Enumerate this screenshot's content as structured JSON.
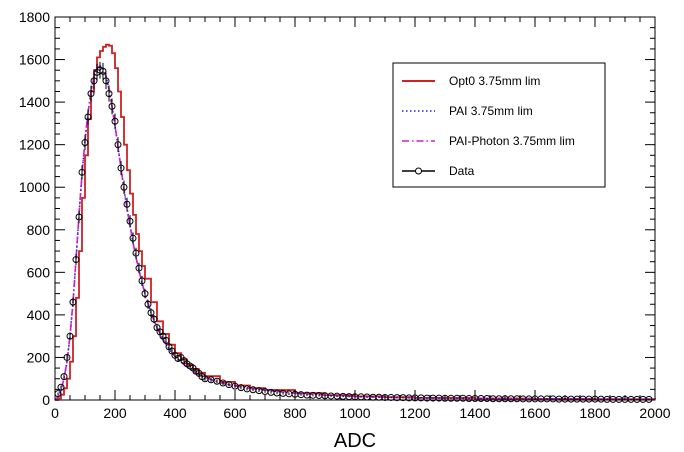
{
  "chart_data": {
    "type": "line",
    "xlabel": "ADC",
    "ylabel": "",
    "xlim": [
      0,
      2000
    ],
    "ylim": [
      0,
      1800
    ],
    "x_ticks": [
      0,
      200,
      400,
      600,
      800,
      1000,
      1200,
      1400,
      1600,
      1800,
      2000
    ],
    "y_ticks": [
      0,
      200,
      400,
      600,
      800,
      1000,
      1200,
      1400,
      1600,
      1800
    ],
    "grid": false,
    "legend_position": "top-right",
    "series": [
      {
        "name": "Opt0 3.75mm lim",
        "style": "step-solid",
        "color": "#cc2222",
        "x": [
          0,
          10,
          20,
          30,
          40,
          50,
          60,
          70,
          80,
          90,
          100,
          110,
          120,
          130,
          140,
          150,
          160,
          170,
          180,
          190,
          200,
          210,
          220,
          230,
          240,
          250,
          260,
          270,
          280,
          290,
          300,
          320,
          340,
          360,
          380,
          400,
          420,
          440,
          460,
          480,
          500,
          550,
          600,
          650,
          700,
          800,
          900,
          1000,
          1100,
          1200,
          1400,
          1600,
          1800,
          2000
        ],
        "y": [
          0,
          8,
          25,
          55,
          100,
          180,
          300,
          480,
          700,
          950,
          1150,
          1320,
          1450,
          1550,
          1610,
          1640,
          1660,
          1670,
          1665,
          1630,
          1560,
          1450,
          1330,
          1200,
          1080,
          970,
          870,
          780,
          700,
          630,
          570,
          460,
          370,
          310,
          260,
          220,
          190,
          165,
          145,
          128,
          112,
          85,
          68,
          56,
          47,
          32,
          23,
          17,
          13,
          10,
          7,
          5,
          4,
          3
        ]
      },
      {
        "name": "PAI 3.75mm lim",
        "style": "dotted",
        "color": "#2222cc",
        "x": [
          0,
          10,
          20,
          30,
          40,
          50,
          60,
          70,
          80,
          90,
          100,
          110,
          120,
          130,
          140,
          150,
          160,
          170,
          180,
          190,
          200,
          210,
          220,
          230,
          240,
          250,
          260,
          270,
          280,
          290,
          300,
          320,
          340,
          360,
          380,
          400,
          420,
          440,
          460,
          480,
          500,
          550,
          600,
          650,
          700,
          800,
          900,
          1000,
          1100,
          1200,
          1400,
          1600,
          1800,
          2000
        ],
        "y": [
          0,
          15,
          45,
          100,
          180,
          300,
          460,
          660,
          870,
          1060,
          1220,
          1350,
          1450,
          1520,
          1560,
          1570,
          1560,
          1520,
          1460,
          1380,
          1290,
          1190,
          1090,
          990,
          900,
          820,
          740,
          670,
          610,
          550,
          500,
          410,
          340,
          285,
          240,
          205,
          178,
          155,
          136,
          120,
          106,
          82,
          66,
          55,
          46,
          32,
          23,
          17,
          13,
          10,
          7,
          5,
          4,
          3
        ]
      },
      {
        "name": "PAI-Photon 3.75mm lim",
        "style": "dash-dot",
        "color": "#cc22cc",
        "x": [
          0,
          10,
          20,
          30,
          40,
          50,
          60,
          70,
          80,
          90,
          100,
          110,
          120,
          130,
          140,
          150,
          160,
          170,
          180,
          190,
          200,
          210,
          220,
          230,
          240,
          250,
          260,
          270,
          280,
          290,
          300,
          320,
          340,
          360,
          380,
          400,
          420,
          440,
          460,
          480,
          500,
          550,
          600,
          650,
          700,
          800,
          900,
          1000,
          1100,
          1200,
          1400,
          1600,
          1800,
          2000
        ],
        "y": [
          0,
          15,
          45,
          100,
          180,
          300,
          460,
          660,
          870,
          1060,
          1220,
          1350,
          1450,
          1520,
          1560,
          1570,
          1560,
          1520,
          1460,
          1380,
          1290,
          1190,
          1090,
          990,
          900,
          820,
          740,
          670,
          610,
          550,
          500,
          410,
          340,
          285,
          240,
          205,
          178,
          155,
          136,
          120,
          106,
          82,
          66,
          55,
          46,
          32,
          23,
          17,
          13,
          10,
          7,
          5,
          4,
          3
        ]
      },
      {
        "name": "Data",
        "style": "markers-open-circle",
        "color": "#000000",
        "x": [
          10,
          20,
          30,
          40,
          50,
          60,
          70,
          80,
          90,
          100,
          110,
          120,
          130,
          140,
          150,
          160,
          170,
          180,
          190,
          200,
          210,
          220,
          230,
          240,
          250,
          260,
          270,
          280,
          290,
          300,
          310,
          320,
          330,
          340,
          350,
          360,
          370,
          380,
          390,
          400,
          410,
          420,
          430,
          440,
          450,
          460,
          470,
          480,
          490,
          500,
          520,
          540,
          560,
          580,
          600,
          620,
          640,
          660,
          680,
          700,
          720,
          740,
          760,
          780,
          800,
          820,
          840,
          860,
          880,
          900,
          920,
          940,
          960,
          980,
          1000,
          1020,
          1040,
          1060,
          1080,
          1100,
          1120,
          1140,
          1160,
          1180,
          1200,
          1220,
          1240,
          1260,
          1280,
          1300,
          1320,
          1340,
          1360,
          1380,
          1400,
          1420,
          1440,
          1460,
          1480,
          1500,
          1520,
          1540,
          1560,
          1580,
          1600,
          1620,
          1640,
          1660,
          1680,
          1700,
          1720,
          1740,
          1760,
          1780,
          1800,
          1820,
          1840,
          1860,
          1880,
          1900,
          1920,
          1940,
          1960,
          1980
        ],
        "y": [
          30,
          60,
          110,
          200,
          300,
          460,
          660,
          860,
          1070,
          1210,
          1330,
          1440,
          1500,
          1540,
          1550,
          1545,
          1500,
          1440,
          1380,
          1310,
          1200,
          1090,
          1000,
          920,
          840,
          760,
          690,
          620,
          560,
          500,
          450,
          410,
          380,
          340,
          320,
          300,
          280,
          250,
          230,
          210,
          195,
          200,
          185,
          170,
          160,
          150,
          135,
          125,
          110,
          100,
          95,
          88,
          80,
          72,
          65,
          58,
          52,
          48,
          44,
          40,
          36,
          33,
          31,
          29,
          27,
          25,
          23,
          22,
          21,
          20,
          19,
          18,
          17,
          16,
          15,
          15,
          14,
          13,
          13,
          12,
          12,
          11,
          11,
          10,
          10,
          10,
          9,
          9,
          9,
          8,
          8,
          8,
          8,
          7,
          7,
          7,
          7,
          6,
          6,
          6,
          6,
          6,
          5,
          5,
          5,
          5,
          5,
          5,
          4,
          4,
          4,
          4,
          4,
          4,
          4,
          4,
          3,
          3,
          3,
          3,
          3,
          3,
          3,
          3
        ]
      }
    ]
  }
}
